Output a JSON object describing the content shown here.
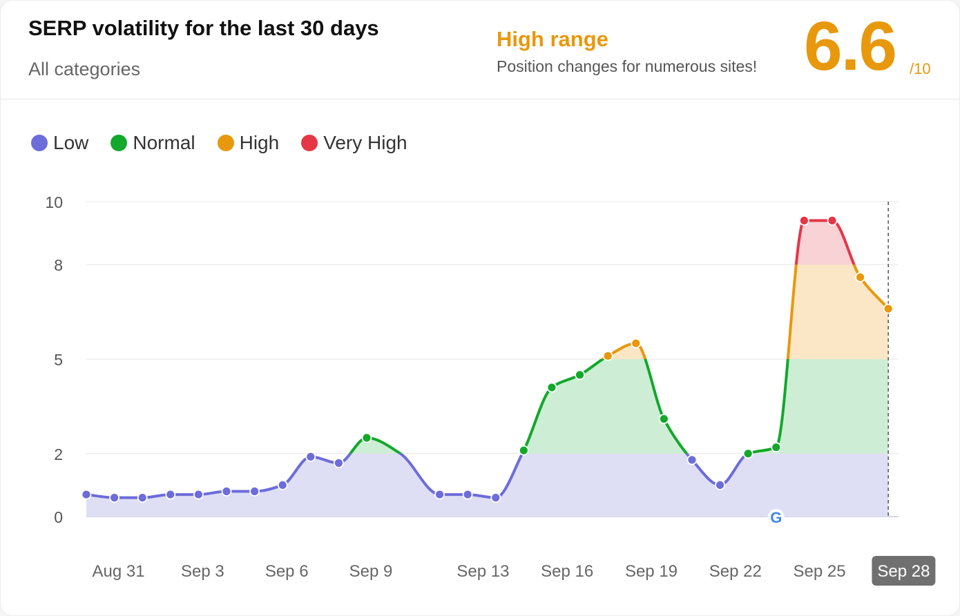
{
  "header": {
    "title": "SERP volatility for the last 30 days",
    "subtitle": "All categories",
    "range_label": "High range",
    "range_desc": "Position changes for numerous sites!",
    "score": "6.6",
    "score_denominator": "/10"
  },
  "colors": {
    "low": "#6c6cdb",
    "normal": "#12a82b",
    "high": "#e8980c",
    "very_high": "#e53646",
    "low_fill": "#dedff5",
    "normal_fill": "#cdeed4",
    "high_fill": "#fbe6c6",
    "very_high_fill": "#f9d2d5",
    "accent": "#e8980c"
  },
  "legend": [
    {
      "label": "Low",
      "color": "#6c6cdb"
    },
    {
      "label": "Normal",
      "color": "#12a82b"
    },
    {
      "label": "High",
      "color": "#e8980c"
    },
    {
      "label": "Very High",
      "color": "#e53646"
    }
  ],
  "chart_data": {
    "type": "area",
    "title": "SERP volatility for the last 30 days",
    "ylim": [
      0,
      10
    ],
    "yticks": [
      0,
      2,
      5,
      8,
      10
    ],
    "thresholds": [
      {
        "name": "Low",
        "max": 2
      },
      {
        "name": "Normal",
        "max": 5
      },
      {
        "name": "High",
        "max": 8
      },
      {
        "name": "Very High",
        "max": 10
      }
    ],
    "x_ticks": [
      {
        "label": "Aug 31",
        "day": 1
      },
      {
        "label": "Sep 3",
        "day": 4
      },
      {
        "label": "Sep 6",
        "day": 7
      },
      {
        "label": "Sep 9",
        "day": 10
      },
      {
        "label": "Sep 13",
        "day": 14
      },
      {
        "label": "Sep 16",
        "day": 17
      },
      {
        "label": "Sep 19",
        "day": 20
      },
      {
        "label": "Sep 22",
        "day": 23
      },
      {
        "label": "Sep 25",
        "day": 26
      },
      {
        "label": "Sep 28",
        "day": 29,
        "highlighted": true
      }
    ],
    "points": [
      {
        "day": 0,
        "value": 0.7,
        "marker": true
      },
      {
        "day": 1,
        "value": 0.6,
        "marker": true
      },
      {
        "day": 2,
        "value": 0.6,
        "marker": true
      },
      {
        "day": 3,
        "value": 0.7,
        "marker": true
      },
      {
        "day": 4,
        "value": 0.7,
        "marker": true
      },
      {
        "day": 5,
        "value": 0.8,
        "marker": true
      },
      {
        "day": 6,
        "value": 0.8,
        "marker": true
      },
      {
        "day": 7,
        "value": 1.0,
        "marker": true
      },
      {
        "day": 8,
        "value": 1.9,
        "marker": true
      },
      {
        "day": 9,
        "value": 1.7,
        "marker": true
      },
      {
        "day": 10,
        "value": 2.5,
        "marker": true
      },
      {
        "day": 11.2,
        "value": 2.0,
        "marker": false
      },
      {
        "day": 12.6,
        "value": 0.7,
        "marker": true
      },
      {
        "day": 13.6,
        "value": 0.7,
        "marker": true
      },
      {
        "day": 14.6,
        "value": 0.6,
        "marker": true
      },
      {
        "day": 15.6,
        "value": 2.1,
        "marker": true
      },
      {
        "day": 16.6,
        "value": 4.1,
        "marker": true
      },
      {
        "day": 17.6,
        "value": 4.5,
        "marker": true
      },
      {
        "day": 18.6,
        "value": 5.1,
        "marker": true
      },
      {
        "day": 19.6,
        "value": 5.5,
        "marker": true
      },
      {
        "day": 20.6,
        "value": 3.1,
        "marker": true
      },
      {
        "day": 21.6,
        "value": 1.8,
        "marker": true
      },
      {
        "day": 22.6,
        "value": 1.0,
        "marker": true
      },
      {
        "day": 23.6,
        "value": 2.0,
        "marker": true
      },
      {
        "day": 24.6,
        "value": 2.2,
        "marker": true
      },
      {
        "day": 25.6,
        "value": 9.4,
        "marker": true
      },
      {
        "day": 26.6,
        "value": 9.4,
        "marker": true
      },
      {
        "day": 27.6,
        "value": 7.6,
        "marker": true
      },
      {
        "day": 28.6,
        "value": 6.6,
        "marker": true
      }
    ],
    "annotations": [
      {
        "type": "google-update-icon",
        "day": 24.6,
        "label": "G"
      }
    ]
  }
}
